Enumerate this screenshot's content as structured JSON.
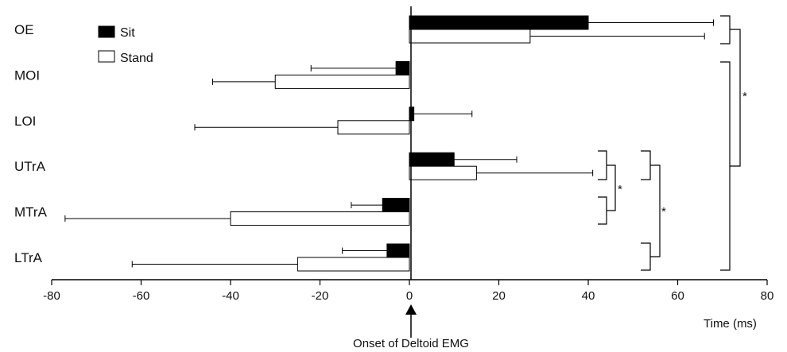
{
  "chart_data": {
    "type": "bar",
    "orientation": "horizontal",
    "categories": [
      "OE",
      "MOI",
      "LOI",
      "UTrA",
      "MTrA",
      "LTrA"
    ],
    "series": [
      {
        "name": "Sit",
        "color": "#000000",
        "values": [
          40,
          -3,
          1,
          10,
          -6,
          -5
        ],
        "errors": [
          28,
          19,
          13,
          14,
          7,
          10
        ]
      },
      {
        "name": "Stand",
        "color": "#ffffff",
        "values": [
          27,
          -30,
          -16,
          15,
          -40,
          -25
        ],
        "errors": [
          39,
          14,
          32,
          26,
          37,
          37
        ]
      }
    ],
    "xlim": [
      -80,
      80
    ],
    "xticks": [
      "-80",
      "-60",
      "-40",
      "-20",
      "0",
      "20",
      "40",
      "60",
      "80"
    ],
    "xlabel": "Time (ms)",
    "annotation": "Onset of Deltoid EMG",
    "significance_marker": "*",
    "legend_position": "top-left"
  }
}
